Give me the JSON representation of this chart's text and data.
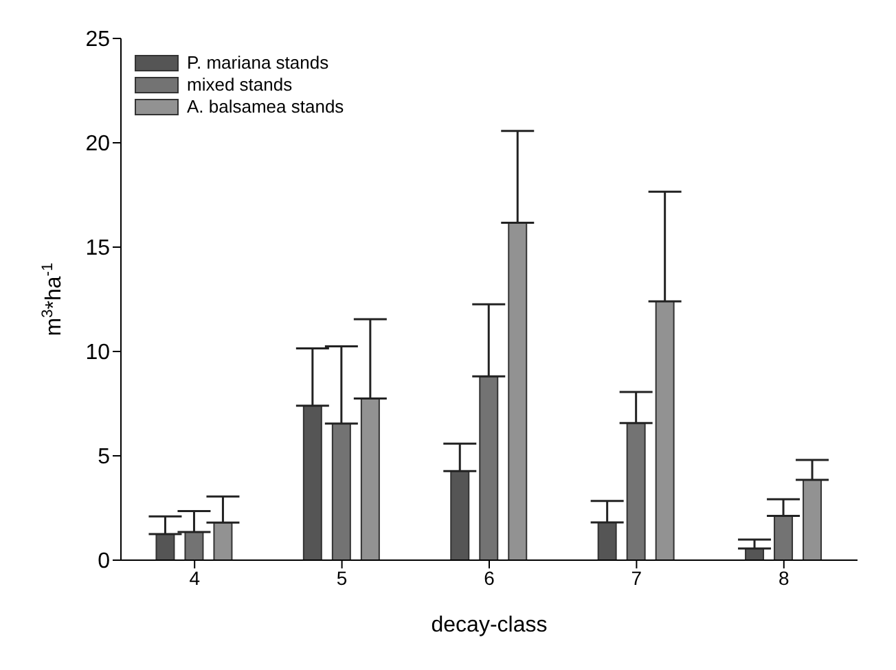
{
  "chart_data": {
    "type": "bar",
    "xlabel": "decay-class",
    "ylabel": "m$^{3}$*ha$^{-1}$",
    "categories": [
      "4",
      "5",
      "6",
      "7",
      "8"
    ],
    "series": [
      {
        "name": "P. mariana stands",
        "color": "#555555",
        "values": [
          1.25,
          7.4,
          4.27,
          1.81,
          0.56
        ],
        "errors": [
          [
            1.25,
            2.1
          ],
          [
            7.4,
            10.15
          ],
          [
            4.27,
            5.58
          ],
          [
            1.81,
            2.84
          ],
          [
            0.56,
            0.99
          ]
        ]
      },
      {
        "name": "mixed stands",
        "color": "#737373",
        "values": [
          1.35,
          6.55,
          8.81,
          6.57,
          2.12
        ],
        "errors": [
          [
            1.35,
            2.35
          ],
          [
            6.55,
            10.25
          ],
          [
            8.81,
            12.26
          ],
          [
            6.57,
            8.06
          ],
          [
            2.12,
            2.92
          ]
        ]
      },
      {
        "name": "A. balsamea stands",
        "color": "#929292",
        "values": [
          1.8,
          7.75,
          16.17,
          12.4,
          3.85
        ],
        "errors": [
          [
            1.8,
            3.05
          ],
          [
            7.75,
            11.55
          ],
          [
            16.17,
            20.57
          ],
          [
            12.4,
            17.66
          ],
          [
            3.85,
            4.8
          ]
        ]
      }
    ],
    "ylim": [
      0,
      25
    ],
    "yticks": [
      0,
      5,
      10,
      15,
      20,
      25
    ],
    "grid": false,
    "legend": "top left"
  }
}
